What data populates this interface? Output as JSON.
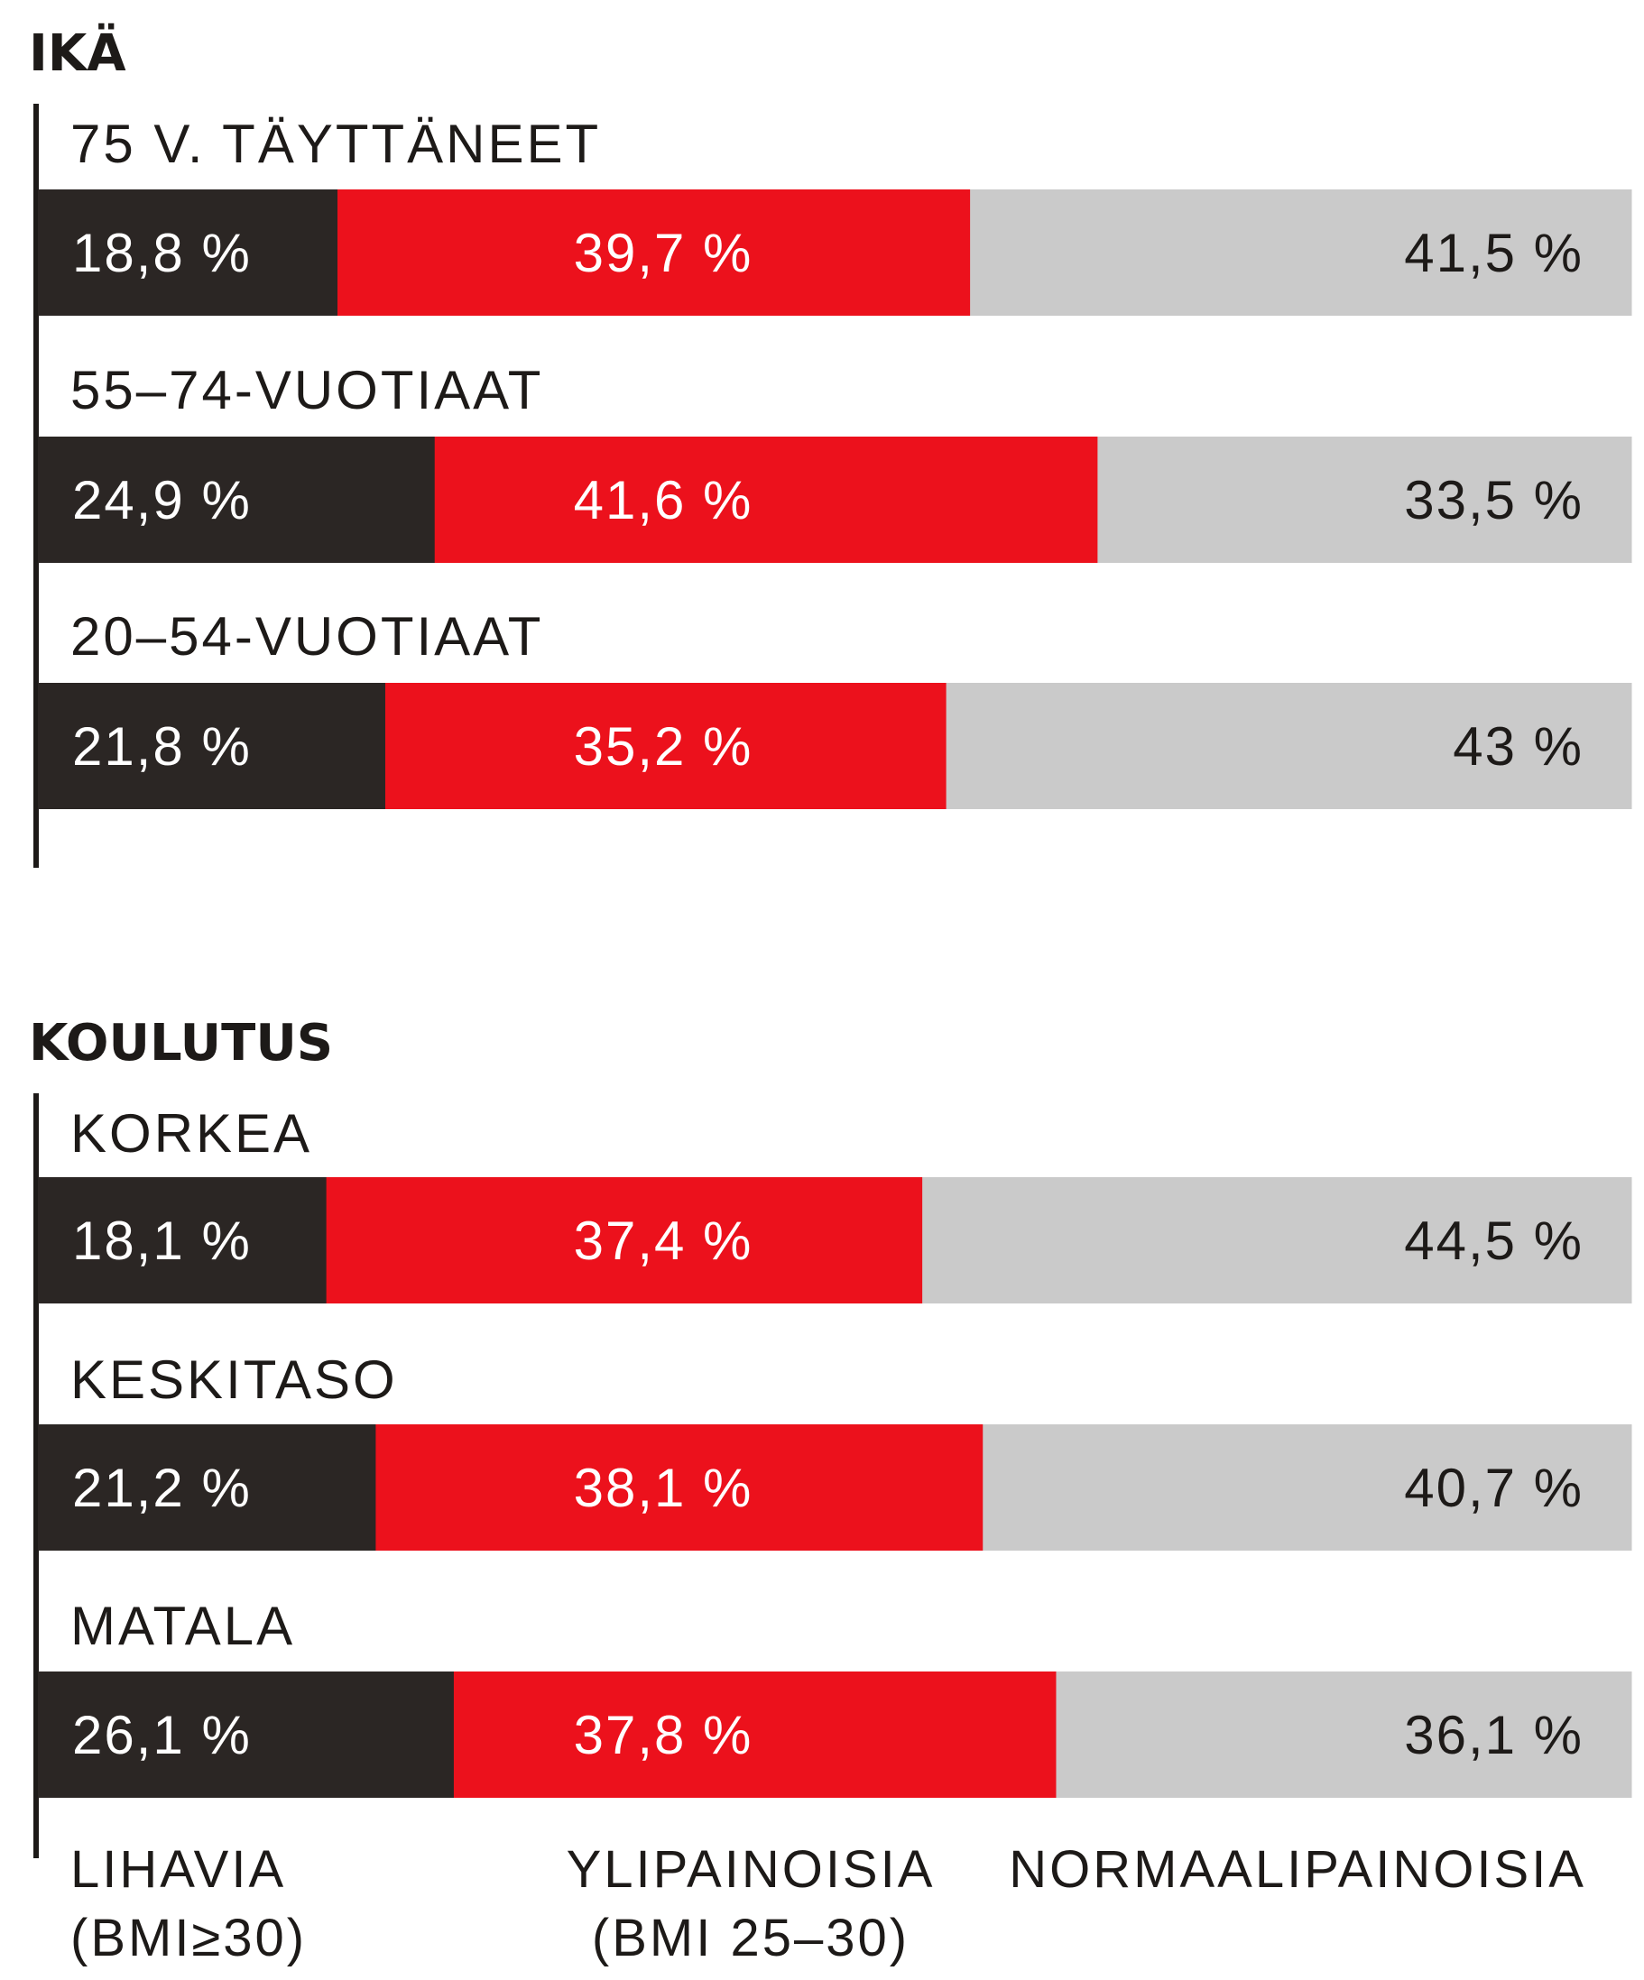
{
  "colors": {
    "lihavia": "#2b2624",
    "ylipainoisia": "#ec111c",
    "normaalipainoisia": "#cacaca",
    "axis": "#1d1a18",
    "text_dark": "#1d1a18",
    "text_light": "#ffffff"
  },
  "chart_data": [
    {
      "type": "bar",
      "stacked": true,
      "orientation": "horizontal",
      "title": "IKÄ",
      "categories": [
        "75 V. TÄYTTÄNEET",
        "55–74-VUOTIAAT",
        "20–54-VUOTIAAT"
      ],
      "series": [
        {
          "name": "LIHAVIA (BMI≥30)",
          "values": [
            18.8,
            24.9,
            21.8
          ],
          "labels": [
            "18,8 %",
            "24,9 %",
            "21,8 %"
          ]
        },
        {
          "name": "YLIPAINOISIA (BMI 25–30)",
          "values": [
            39.7,
            41.6,
            35.2
          ],
          "labels": [
            "39,7 %",
            "41,6 %",
            "35,2 %"
          ]
        },
        {
          "name": "NORMAALIPAINOISIA",
          "values": [
            41.5,
            33.5,
            43
          ],
          "labels": [
            "41,5 %",
            "33,5 %",
            "43 %"
          ]
        }
      ],
      "xlim": [
        0,
        100
      ]
    },
    {
      "type": "bar",
      "stacked": true,
      "orientation": "horizontal",
      "title": "KOULUTUS",
      "categories": [
        "KORKEA",
        "KESKITASO",
        "MATALA"
      ],
      "series": [
        {
          "name": "LIHAVIA (BMI≥30)",
          "values": [
            18.1,
            21.2,
            26.1
          ],
          "labels": [
            "18,1 %",
            "21,2 %",
            "26,1 %"
          ]
        },
        {
          "name": "YLIPAINOISIA (BMI 25–30)",
          "values": [
            37.4,
            38.1,
            37.8
          ],
          "labels": [
            "37,4 %",
            "38,1 %",
            "37,8 %"
          ]
        },
        {
          "name": "NORMAALIPAINOISIA",
          "values": [
            44.5,
            40.7,
            36.1
          ],
          "labels": [
            "44,5 %",
            "40,7 %",
            "36,1 %"
          ]
        }
      ],
      "xlim": [
        0,
        100
      ]
    }
  ],
  "legend": [
    {
      "line1": "LIHAVIA",
      "line2": "(BMI≥30)"
    },
    {
      "line1": "YLIPAINOISIA",
      "line2": "(BMI 25–30)"
    },
    {
      "line1": "NORMAALIPAINOISIA",
      "line2": ""
    }
  ]
}
